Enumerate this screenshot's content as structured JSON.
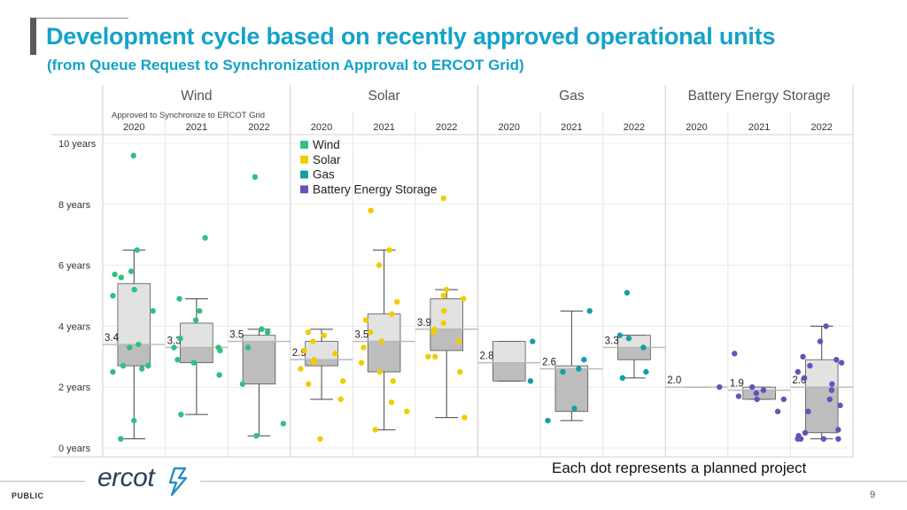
{
  "header": {
    "title": "Development cycle based on recently approved operational units",
    "subtitle": "(from Queue Request to Synchronization Approval to ERCOT Grid)"
  },
  "footer": {
    "classification": "PUBLIC",
    "page_number": "9",
    "note": "Each dot represents a planned project",
    "logo_text": "ercot"
  },
  "colors": {
    "wind": "#2ec27e",
    "solar": "#f0cc00",
    "gas": "#139fa8",
    "battery": "#6453b8",
    "title": "#13a3c9"
  },
  "chart_data": {
    "type": "box",
    "title": "",
    "axis_note": "Approved to Synchronize to ERCOT Grid",
    "ylabel": "",
    "ylim": [
      0,
      10
    ],
    "y_ticks": [
      {
        "value": 0,
        "label": "0 years"
      },
      {
        "value": 2,
        "label": "2 years"
      },
      {
        "value": 4,
        "label": "4 years"
      },
      {
        "value": 6,
        "label": "6 years"
      },
      {
        "value": 8,
        "label": "8 years"
      },
      {
        "value": 10,
        "label": "10 years"
      }
    ],
    "legend": [
      {
        "key": "wind",
        "label": "Wind"
      },
      {
        "key": "solar",
        "label": "Solar"
      },
      {
        "key": "gas",
        "label": "Gas"
      },
      {
        "key": "battery",
        "label": "Battery Energy Storage"
      }
    ],
    "groups": [
      {
        "name": "Wind",
        "key": "wind",
        "years": [
          {
            "year": "2020",
            "median": 3.4,
            "median_label": "3.4",
            "q1": 2.7,
            "q3": 5.4,
            "min": 0.3,
            "max": 6.5,
            "points": [
              9.6,
              6.5,
              5.7,
              5.6,
              5.8,
              5.2,
              5.0,
              4.5,
              3.4,
              3.3,
              2.7,
              2.7,
              2.6,
              2.5,
              0.9,
              0.3
            ]
          },
          {
            "year": "2021",
            "median": 3.3,
            "median_label": "3.3",
            "q1": 2.8,
            "q3": 4.1,
            "min": 1.1,
            "max": 4.9,
            "points": [
              6.9,
              4.9,
              4.5,
              4.2,
              3.6,
              3.3,
              3.3,
              3.2,
              2.9,
              2.8,
              2.4,
              1.1
            ]
          },
          {
            "year": "2022",
            "median": 3.5,
            "median_label": "3.5",
            "q1": 2.1,
            "q3": 3.7,
            "min": 0.4,
            "max": 3.9,
            "points": [
              8.9,
              3.9,
              3.8,
              3.3,
              2.1,
              0.8,
              0.4
            ]
          }
        ]
      },
      {
        "name": "Solar",
        "key": "solar",
        "years": [
          {
            "year": "2020",
            "median": 2.9,
            "median_label": "2.9",
            "q1": 2.7,
            "q3": 3.5,
            "min": 1.6,
            "max": 3.9,
            "points": [
              3.8,
              3.7,
              3.5,
              3.2,
              3.1,
              2.9,
              2.8,
              2.6,
              2.2,
              2.1,
              1.6,
              0.3
            ]
          },
          {
            "year": "2021",
            "median": 3.5,
            "median_label": "3.5",
            "q1": 2.5,
            "q3": 4.4,
            "min": 0.6,
            "max": 6.5,
            "points": [
              7.8,
              6.5,
              6.0,
              4.8,
              4.4,
              4.2,
              3.8,
              3.5,
              3.3,
              2.8,
              2.5,
              2.2,
              1.5,
              1.2,
              0.6
            ]
          },
          {
            "year": "2022",
            "median": 3.9,
            "median_label": "3.9",
            "q1": 3.2,
            "q3": 4.9,
            "min": 1.0,
            "max": 5.2,
            "points": [
              8.2,
              5.2,
              5.0,
              4.9,
              4.5,
              4.1,
              3.9,
              3.8,
              3.5,
              3.0,
              3.0,
              2.5,
              1.0
            ]
          }
        ]
      },
      {
        "name": "Gas",
        "key": "gas",
        "years": [
          {
            "year": "2020",
            "median": 2.8,
            "median_label": "2.8",
            "q1": 2.2,
            "q3": 3.5,
            "min": 2.2,
            "max": 3.5,
            "points": [
              3.5,
              2.2
            ]
          },
          {
            "year": "2021",
            "median": 2.6,
            "median_label": "2.6",
            "q1": 1.2,
            "q3": 2.7,
            "min": 0.9,
            "max": 4.5,
            "points": [
              4.5,
              2.9,
              2.6,
              1.3,
              0.9,
              2.5
            ]
          },
          {
            "year": "2022",
            "median": 3.3,
            "median_label": "3.3",
            "q1": 2.9,
            "q3": 3.7,
            "min": 2.3,
            "max": 3.7,
            "points": [
              5.1,
              3.7,
              3.6,
              3.3,
              2.5,
              2.3
            ]
          }
        ]
      },
      {
        "name": "Battery Energy Storage",
        "key": "battery",
        "years": [
          {
            "year": "2020",
            "median": 2.0,
            "median_label": "2.0",
            "q1": 2.0,
            "q3": 2.0,
            "min": 2.0,
            "max": 2.0,
            "points": [
              2.0
            ]
          },
          {
            "year": "2021",
            "median": 1.9,
            "median_label": "1.9",
            "q1": 1.6,
            "q3": 2.0,
            "min": 1.6,
            "max": 2.0,
            "points": [
              3.1,
              2.0,
              1.9,
              1.8,
              1.7,
              1.6,
              1.6,
              1.2
            ]
          },
          {
            "year": "2022",
            "median": 2.0,
            "median_label": "2.0",
            "q1": 0.5,
            "q3": 2.9,
            "min": 0.3,
            "max": 4.0,
            "points": [
              4.0,
              3.5,
              3.0,
              2.9,
              2.8,
              2.7,
              2.5,
              2.3,
              2.1,
              1.9,
              1.6,
              1.4,
              1.2,
              0.6,
              0.5,
              0.4,
              0.3,
              0.3,
              0.3,
              0.3
            ]
          }
        ]
      }
    ]
  }
}
